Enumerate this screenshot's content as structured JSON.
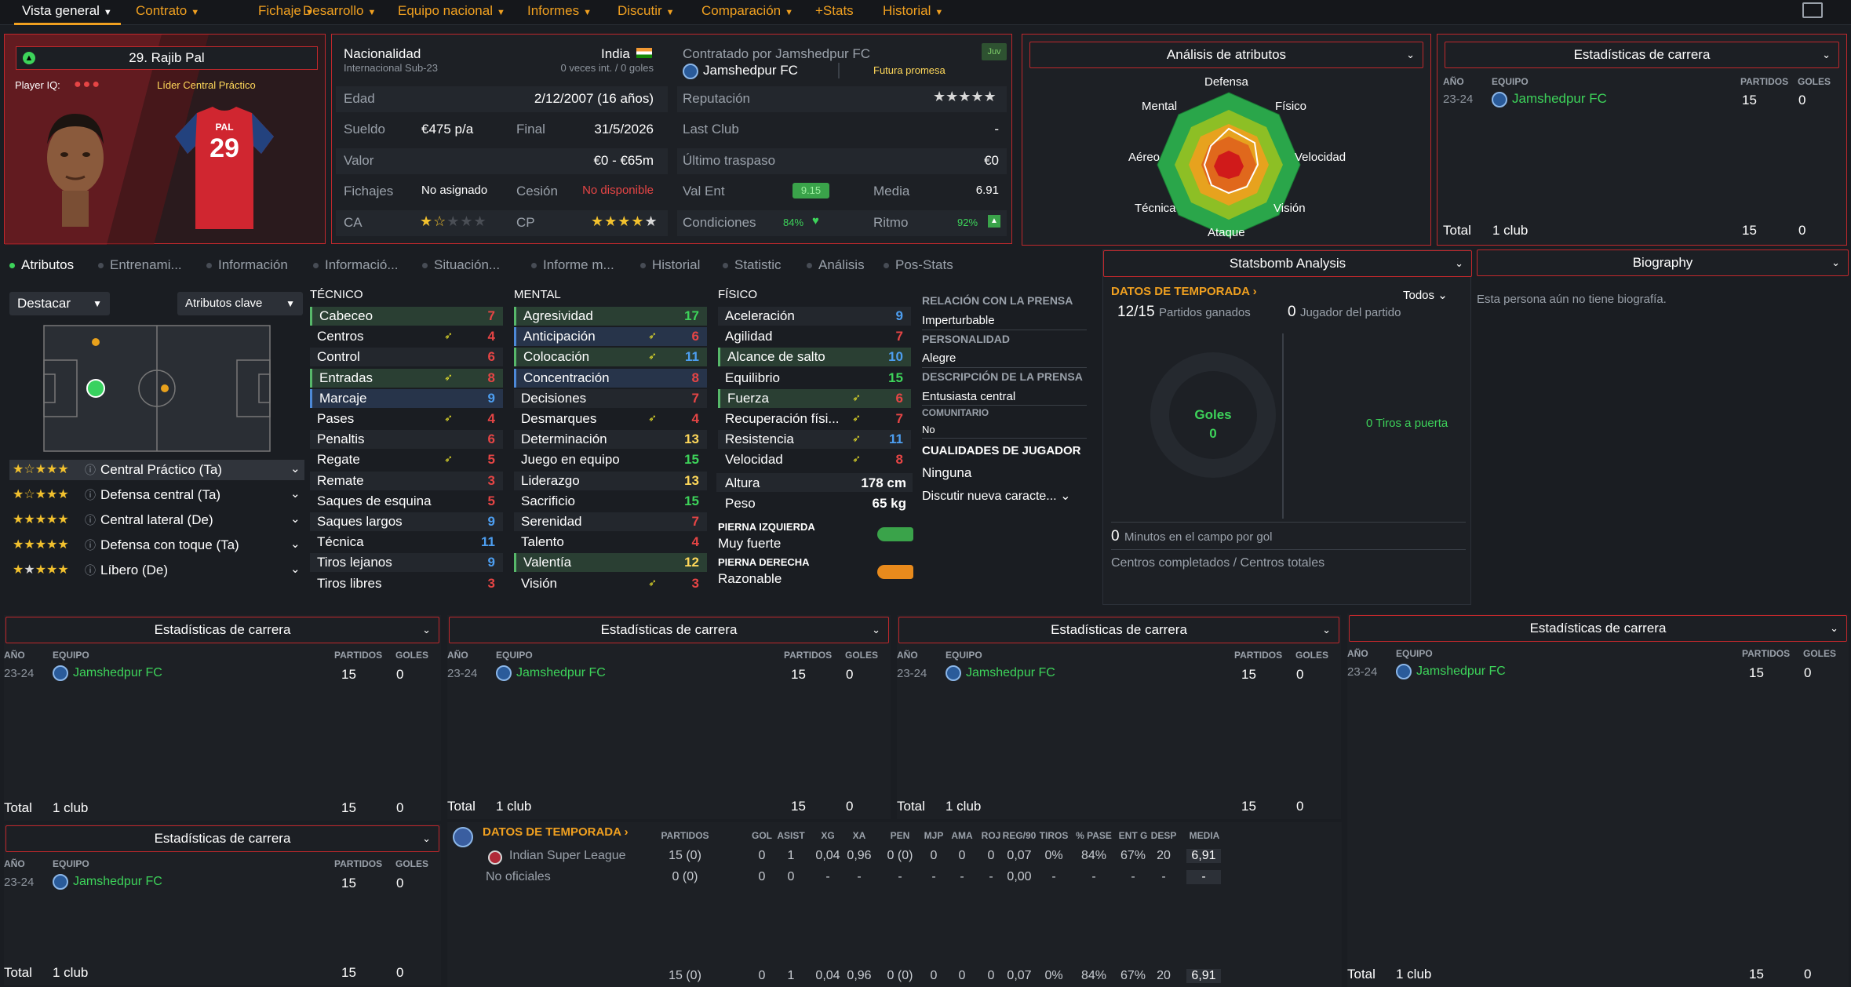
{
  "nav": {
    "items": [
      "Vista general",
      "Contrato",
      "Fichaje",
      "Desarrollo",
      "Equipo nacional",
      "Informes",
      "Discutir",
      "Comparación",
      "+Stats",
      "Historial"
    ]
  },
  "player": {
    "name": "29. Rajib Pal",
    "iq_label": "Player IQ:",
    "role": "Líder  Central Práctico",
    "shirt_name": "PAL",
    "shirt_number": "29"
  },
  "info": {
    "nat_label": "Nacionalidad",
    "nat_value": "India",
    "intl_label": "Internacional Sub-23",
    "intl_value": "0 veces int. / 0 goles",
    "age_label": "Edad",
    "age_value": "2/12/2007 (16 años)",
    "wage_label": "Sueldo",
    "wage_value": "€475 p/a",
    "end_label": "Final",
    "end_value": "31/5/2026",
    "value_label": "Valor",
    "value_value": "€0 - €65m",
    "sign_label": "Fichajes",
    "sign_value": "No asignado",
    "loan_label": "Cesión",
    "loan_value": "No disponible",
    "ca_label": "CA",
    "cp_label": "CP",
    "ca_stars": 1.5,
    "cp_stars": 4.5
  },
  "contract": {
    "contracted_label": "Contratado por Jamshedpur FC",
    "badge": "Juv",
    "club": "Jamshedpur FC",
    "prospect": "Futura promesa",
    "rep_label": "Reputación",
    "rep_stars": 5,
    "last_club_label": "Last Club",
    "last_club_value": "-",
    "last_transfer_label": "Último traspaso",
    "last_transfer_value": "€0",
    "val_ent_label": "Val Ent",
    "val_ent_value": "9.15",
    "media_label": "Media",
    "media_value": "6.91",
    "cond_label": "Condiciones",
    "cond_value": "84%",
    "ritmo_label": "Ritmo",
    "ritmo_value": "92%"
  },
  "attr_analysis": {
    "title": "Análisis de atributos",
    "labels": [
      "Defensa",
      "Físico",
      "Velocidad",
      "Visión",
      "Ataque",
      "Técnica",
      "Aéreo",
      "Mental"
    ]
  },
  "career_top": {
    "title": "Estadísticas de carrera",
    "h_year": "AÑO",
    "h_team": "EQUIPO",
    "h_games": "PARTIDOS",
    "h_goals": "GOLES",
    "year": "23-24",
    "team": "Jamshedpur FC",
    "games": "15",
    "goals": "0",
    "total_label": "Total",
    "total_clubs": "1 club",
    "total_games": "15",
    "total_goals": "0"
  },
  "tabs": [
    "Atributos",
    "Entrenami...",
    "Información",
    "Informació...",
    "Situación...",
    "Informe m...",
    "Historial",
    "Statistic",
    "Análisis",
    "Pos-Stats"
  ],
  "pitch": {
    "highlight": "Destacar",
    "key_attrs": "Atributos clave"
  },
  "positions": [
    {
      "name": "Central Práctico (Ta)",
      "stars": 1.5
    },
    {
      "name": "Defensa central (Ta)",
      "stars": 1.5
    },
    {
      "name": "Central lateral (De)",
      "stars": 1
    },
    {
      "name": "Defensa con toque (Ta)",
      "stars": 1
    },
    {
      "name": "Líbero (De)",
      "stars": 2
    }
  ],
  "technical": {
    "title": "TÉCNICO",
    "items": [
      {
        "n": "Cabeceo",
        "v": "7",
        "c": "red",
        "h": "green"
      },
      {
        "n": "Centros",
        "v": "4",
        "c": "red",
        "a": true
      },
      {
        "n": "Control",
        "v": "6",
        "c": "red"
      },
      {
        "n": "Entradas",
        "v": "8",
        "c": "red",
        "h": "green",
        "a": true
      },
      {
        "n": "Marcaje",
        "v": "9",
        "c": "blue",
        "h": "blue"
      },
      {
        "n": "Pases",
        "v": "4",
        "c": "red",
        "a": true
      },
      {
        "n": "Penaltis",
        "v": "6",
        "c": "red"
      },
      {
        "n": "Regate",
        "v": "5",
        "c": "red",
        "a": true
      },
      {
        "n": "Remate",
        "v": "3",
        "c": "red"
      },
      {
        "n": "Saques de esquina",
        "v": "5",
        "c": "red"
      },
      {
        "n": "Saques largos",
        "v": "9",
        "c": "blue"
      },
      {
        "n": "Técnica",
        "v": "11",
        "c": "blue"
      },
      {
        "n": "Tiros lejanos",
        "v": "9",
        "c": "blue"
      },
      {
        "n": "Tiros libres",
        "v": "3",
        "c": "red"
      }
    ]
  },
  "mental": {
    "title": "MENTAL",
    "items": [
      {
        "n": "Agresividad",
        "v": "17",
        "c": "green",
        "h": "green"
      },
      {
        "n": "Anticipación",
        "v": "6",
        "c": "red",
        "h": "blue",
        "a": true
      },
      {
        "n": "Colocación",
        "v": "11",
        "c": "blue",
        "h": "green",
        "a": true
      },
      {
        "n": "Concentración",
        "v": "8",
        "c": "red",
        "h": "blue"
      },
      {
        "n": "Decisiones",
        "v": "7",
        "c": "red"
      },
      {
        "n": "Desmarques",
        "v": "4",
        "c": "red",
        "a": true
      },
      {
        "n": "Determinación",
        "v": "13",
        "c": "yellow"
      },
      {
        "n": "Juego en equipo",
        "v": "15",
        "c": "green"
      },
      {
        "n": "Liderazgo",
        "v": "13",
        "c": "yellow"
      },
      {
        "n": "Sacrificio",
        "v": "15",
        "c": "green"
      },
      {
        "n": "Serenidad",
        "v": "7",
        "c": "red"
      },
      {
        "n": "Talento",
        "v": "4",
        "c": "red"
      },
      {
        "n": "Valentía",
        "v": "12",
        "c": "yellow",
        "h": "green"
      },
      {
        "n": "Visión",
        "v": "3",
        "c": "red",
        "a": true
      }
    ]
  },
  "physical": {
    "title": "FÍSICO",
    "items": [
      {
        "n": "Aceleración",
        "v": "9",
        "c": "blue"
      },
      {
        "n": "Agilidad",
        "v": "7",
        "c": "red"
      },
      {
        "n": "Alcance de salto",
        "v": "10",
        "c": "blue",
        "h": "green"
      },
      {
        "n": "Equilibrio",
        "v": "15",
        "c": "green"
      },
      {
        "n": "Fuerza",
        "v": "6",
        "c": "red",
        "h": "green",
        "a": true
      },
      {
        "n": "Recuperación físi...",
        "v": "7",
        "c": "red",
        "a": true
      },
      {
        "n": "Resistencia",
        "v": "11",
        "c": "blue",
        "a": true
      },
      {
        "n": "Velocidad",
        "v": "8",
        "c": "red",
        "a": true
      }
    ],
    "height_label": "Altura",
    "height_value": "178 cm",
    "weight_label": "Peso",
    "weight_value": "65 kg",
    "left_foot_label": "PIERNA IZQUIERDA",
    "left_foot_value": "Muy fuerte",
    "right_foot_label": "PIERNA DERECHA",
    "right_foot_value": "Razonable"
  },
  "personality": {
    "press_label": "RELACIÓN CON LA PRENSA",
    "press_value": "Imperturbable",
    "pers_label": "PERSONALIDAD",
    "pers_value": "Alegre",
    "press_desc_label": "DESCRIPCIÓN DE LA PRENSA",
    "press_desc_value": "Entusiasta central",
    "community_label": "COMUNITARIO",
    "community_value": "No",
    "qualities_label": "CUALIDADES DE JUGADOR",
    "qualities_value": "Ninguna",
    "discuss": "Discutir nueva caracte..."
  },
  "statsbomb": {
    "title": "Statsbomb Analysis",
    "season_link": "DATOS DE TEMPORADA",
    "filter": "Todos",
    "won_value": "12/15",
    "won_label": "Partidos ganados",
    "potm_value": "0",
    "potm_label": "Jugador del partido",
    "goals_label": "Goles",
    "goals_value": "0",
    "shots_label": "0  Tiros a puerta",
    "mins_value": "0",
    "mins_label": "Minutos en el campo por gol",
    "crosses_label": "Centros completados / Centros totales"
  },
  "biography": {
    "title": "Biography",
    "text": "Esta persona aún no tiene biografía."
  },
  "season": {
    "link": "DATOS DE TEMPORADA",
    "headers": [
      "PARTIDOS",
      "GOL",
      "ASIST",
      "XG",
      "XA",
      "PEN",
      "MJP",
      "AMA",
      "ROJ",
      "REG/90",
      "TIROS",
      "% PASE",
      "ENT G",
      "DESP",
      "MEDIA"
    ],
    "rows": [
      {
        "name": "Indian Super League",
        "vals": [
          "15 (0)",
          "0",
          "1",
          "0,04",
          "0,96",
          "0 (0)",
          "0",
          "0",
          "0",
          "0,07",
          "0%",
          "84%",
          "67%",
          "20",
          "6,91"
        ]
      },
      {
        "name": "No oficiales",
        "vals": [
          "0 (0)",
          "0",
          "0",
          "-",
          "-",
          "-",
          "-",
          "-",
          "-",
          "0,00",
          "-",
          "-",
          "-",
          "-",
          "-"
        ]
      }
    ],
    "totals": [
      "15 (0)",
      "0",
      "1",
      "0,04",
      "0,96",
      "0 (0)",
      "0",
      "0",
      "0",
      "0,07",
      "0%",
      "84%",
      "67%",
      "20",
      "6,91"
    ]
  },
  "colors": {
    "accent": "#f0a020",
    "panel_border": "#c0282c",
    "positive": "#3dd35a",
    "negative": "#e64545"
  }
}
